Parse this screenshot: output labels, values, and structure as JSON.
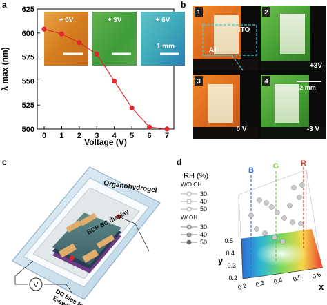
{
  "panels": {
    "a": {
      "label": "a",
      "insets": [
        "+ 0V",
        "+ 3V",
        "+ 6V"
      ],
      "inset_colors": [
        "#d9872a",
        "#4fa844",
        "#52b5c4"
      ],
      "scale_bar": "1 mm"
    },
    "b": {
      "label": "b",
      "tiles": [
        "1",
        "2",
        "3",
        "4"
      ],
      "labels": {
        "ito": "ITO",
        "al": "Al",
        "v_plus3": "+3V",
        "scale": "2 mm",
        "v0": "0 V",
        "v_minus3": "-3 V"
      }
    },
    "c": {
      "label": "c",
      "organo": "Organohydrogel",
      "display": "BCP SC display",
      "voltage_symbol": "V",
      "dc1": "DC bias for",
      "dc2": "E-switching"
    },
    "d": {
      "label": "d",
      "rh_title": "RH (%)",
      "wo_oh": "W/O OH",
      "w_oh": "W/  OH",
      "legend_values": [
        "30",
        "40",
        "50"
      ],
      "axis_x": "x",
      "axis_y": "y",
      "markers": [
        "B",
        "G",
        "R"
      ],
      "marker_colors": [
        "#3a6fd8",
        "#7cc140",
        "#d33b2a"
      ],
      "x_ticks": [
        "0.2",
        "0.3",
        "0.4",
        "0.5",
        "0.6"
      ],
      "y_ticks": [
        "0.5",
        "0.4",
        "0.3",
        "0.2"
      ]
    }
  },
  "chart_data": {
    "type": "line",
    "x": [
      0,
      1,
      2,
      3,
      4,
      5,
      6,
      7
    ],
    "values": [
      604,
      599,
      590,
      578,
      550,
      522,
      502,
      500
    ],
    "xlabel": "Voltage (V)",
    "ylabel": "λ max (nm)",
    "ylim": [
      500,
      625
    ],
    "xlim": [
      0,
      7
    ],
    "x_ticks": [
      "0",
      "1",
      "2",
      "3",
      "4",
      "5",
      "6",
      "7"
    ],
    "y_ticks": [
      "500",
      "525",
      "550",
      "575",
      "600",
      "625"
    ],
    "color": "#e0282d"
  }
}
